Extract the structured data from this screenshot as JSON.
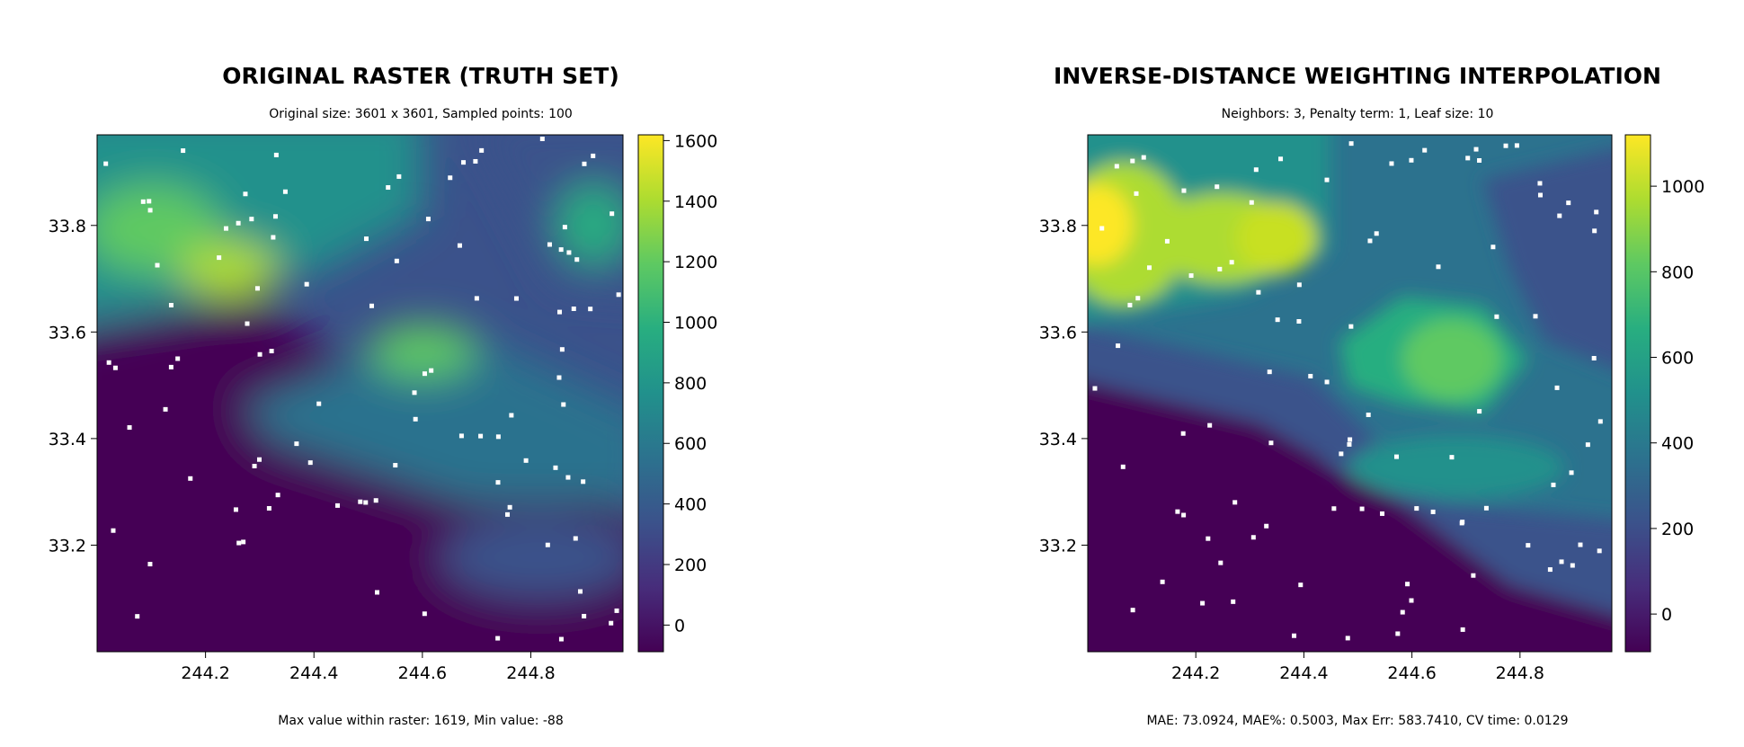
{
  "chart_data": [
    {
      "type": "heatmap",
      "title": "ORIGINAL RASTER (TRUTH SET)",
      "subtitle": "Original size: 3601 x 3601, Sampled points: 100",
      "footer": "Max value within raster: 1619,  Min value: -88",
      "x_ticks": [
        "244.2",
        "244.4",
        "244.6",
        "244.8"
      ],
      "y_ticks": [
        "33.8",
        "33.6",
        "33.4",
        "33.2"
      ],
      "x_tick_values": [
        244.2,
        244.4,
        244.6,
        244.8
      ],
      "y_tick_values": [
        33.8,
        33.6,
        33.4,
        33.2
      ],
      "xlim": [
        244.0,
        244.97
      ],
      "ylim": [
        33.0,
        33.97
      ],
      "colorbar": {
        "ticks": [
          "1600",
          "1400",
          "1200",
          "1000",
          "800",
          "600",
          "400",
          "200",
          "0"
        ],
        "tick_values": [
          1600,
          1400,
          1200,
          1000,
          800,
          600,
          400,
          200,
          0
        ],
        "range": [
          -88,
          1619
        ],
        "colormap": "viridis"
      },
      "sample_color": "#ffffff"
    },
    {
      "type": "heatmap",
      "title": "INVERSE-DISTANCE WEIGHTING INTERPOLATION",
      "subtitle": "Neighbors: 3, Penalty term: 1, Leaf size: 10",
      "footer": "MAE: 73.0924,  MAE%: 0.5003,  Max Err: 583.7410,  CV time: 0.0129",
      "x_ticks": [
        "244.2",
        "244.4",
        "244.6",
        "244.8"
      ],
      "y_ticks": [
        "33.8",
        "33.6",
        "33.4",
        "33.2"
      ],
      "x_tick_values": [
        244.2,
        244.4,
        244.6,
        244.8
      ],
      "y_tick_values": [
        33.8,
        33.6,
        33.4,
        33.2
      ],
      "xlim": [
        244.0,
        244.97
      ],
      "ylim": [
        33.0,
        33.97
      ],
      "colorbar": {
        "ticks": [
          "1000",
          "800",
          "600",
          "400",
          "200",
          "0"
        ],
        "tick_values": [
          1000,
          800,
          600,
          400,
          200,
          0
        ],
        "range": [
          -88,
          1120
        ],
        "colormap": "viridis"
      },
      "sample_color": "#ffffff"
    }
  ]
}
